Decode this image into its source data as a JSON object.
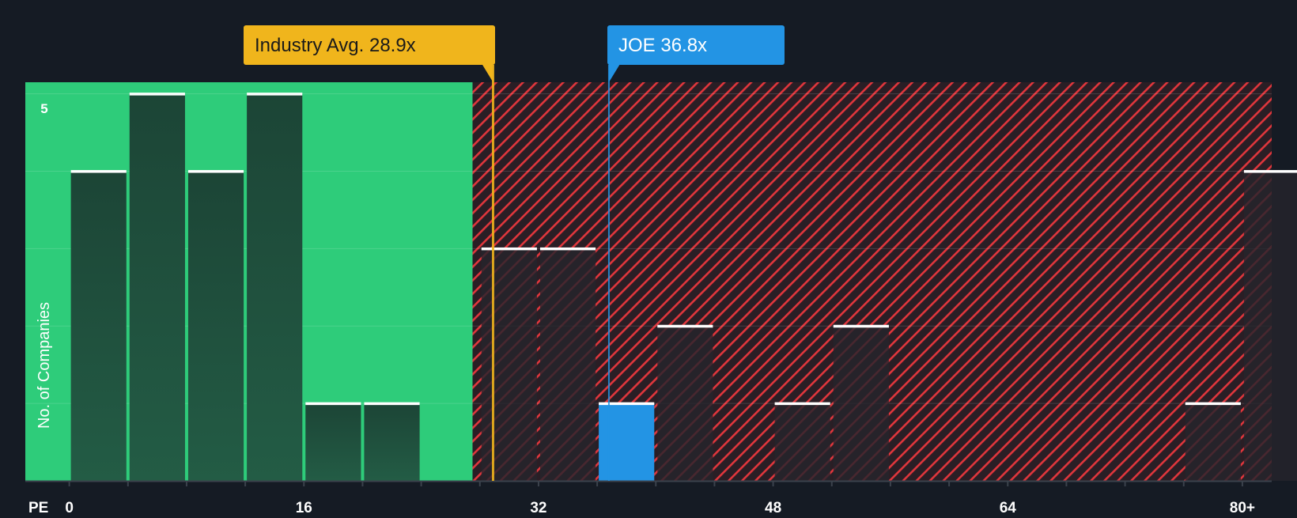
{
  "chart_data": {
    "type": "bar",
    "title": "",
    "xlabel": "PE",
    "ylabel": "No. of Companies",
    "x_tick_labels": [
      "0",
      "16",
      "32",
      "48",
      "64",
      "80+"
    ],
    "x_ticks": [
      0,
      16,
      32,
      48,
      64,
      80
    ],
    "xlim": [
      -3,
      82
    ],
    "bin_width": 4,
    "y_tick_labels": [
      "5"
    ],
    "ylim": [
      0,
      5.15
    ],
    "grid": true,
    "bins": [
      {
        "start": 0,
        "value": 4
      },
      {
        "start": 4,
        "value": 5
      },
      {
        "start": 8,
        "value": 4
      },
      {
        "start": 12,
        "value": 5
      },
      {
        "start": 16,
        "value": 1
      },
      {
        "start": 20,
        "value": 1
      },
      {
        "start": 28,
        "value": 3
      },
      {
        "start": 32,
        "value": 3
      },
      {
        "start": 36,
        "value": 1,
        "highlight": true
      },
      {
        "start": 40,
        "value": 2
      },
      {
        "start": 48,
        "value": 1
      },
      {
        "start": 52,
        "value": 2
      },
      {
        "start": 76,
        "value": 1
      },
      {
        "start": 80,
        "value": 4
      }
    ],
    "fair_zone_end": 27.5,
    "annotations": [
      {
        "label": "Industry Avg. 28.9x",
        "value": 28.9,
        "color": "#f0b51c"
      },
      {
        "label": "JOE 36.8x",
        "value": 36.8,
        "color": "#2394e4"
      }
    ],
    "colors": {
      "background": "#151b24",
      "fair_zone": "#2ecc7a",
      "bar_fair": "#1f4a3d",
      "bar_over": "#2a2730",
      "highlight": "#2394e4",
      "hatch": "#e0363c",
      "hatch_bg": "#2a1e25",
      "cap": "#ffffff"
    }
  }
}
